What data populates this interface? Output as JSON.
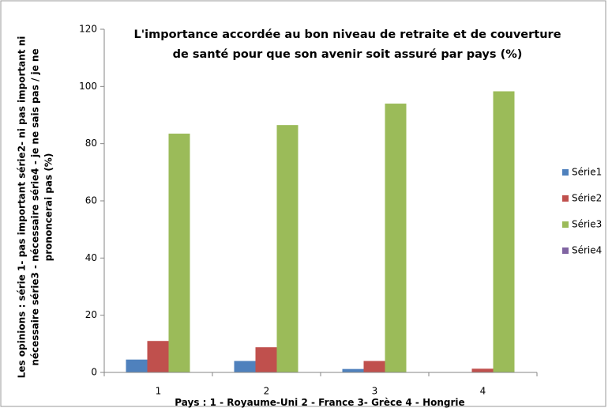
{
  "chart_data": {
    "type": "bar",
    "title": "L'importance accordée au bon niveau de retraite et de couverture de santé pour que son avenir soit assuré par pays  (%)",
    "y_label": "Les opinions : série 1- pas important série2- ni pas important ni nécessaire  série3 - nécessaire série4 - je ne sais pas / je ne prononcerai pas (%)",
    "x_label": "Pays : 1 - Royaume-Uni  2 - France  3- Grèce  4 - Hongrie",
    "categories": [
      "1",
      "2",
      "3",
      "4"
    ],
    "series": [
      {
        "name": "Série1",
        "color": "#4f81bd",
        "values": [
          4.5,
          4,
          1.2,
          0
        ]
      },
      {
        "name": "Série2",
        "color": "#c0504d",
        "values": [
          11,
          8.8,
          4,
          1.3
        ]
      },
      {
        "name": "Série3",
        "color": "#9bbb59",
        "values": [
          83.5,
          86.5,
          94,
          98.3
        ]
      },
      {
        "name": "Série4",
        "color": "#8064a2",
        "values": [
          0,
          0,
          0,
          0
        ]
      }
    ],
    "ylim": [
      0,
      120
    ],
    "yticks": [
      0,
      20,
      40,
      60,
      80,
      100,
      120
    ],
    "grid": false,
    "legend": "right"
  }
}
